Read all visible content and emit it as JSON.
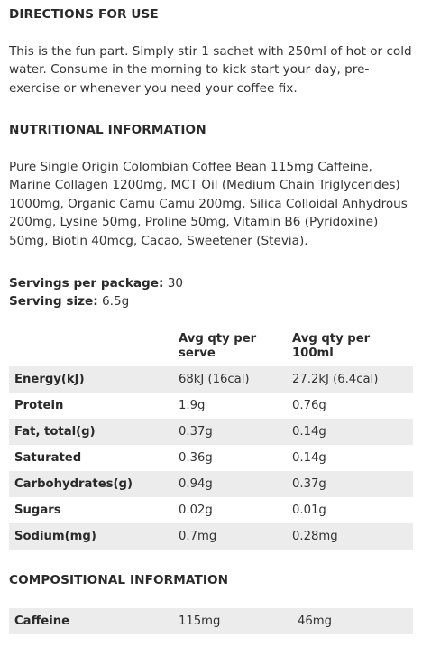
{
  "directions": {
    "heading": "DIRECTIONS FOR USE",
    "text": "This is the fun part. Simply stir 1 sachet with 250ml of hot or cold water. Consume in the morning to kick start your day, pre-exercise or whenever you need your coffee fix."
  },
  "nutrition": {
    "heading": "NUTRITIONAL INFORMATION",
    "ingredients": "Pure Single Origin Colombian Coffee Bean 115mg Caffeine, Marine Collagen 1200mg, MCT Oil (Medium Chain Triglycerides) 1000mg, Organic Camu Camu 200mg, Silica Colloidal Anhydrous 200mg, Lysine 50mg, Proline 50mg, Vitamin B6 (Pyridoxine) 50mg, Biotin 40mcg, Cacao, Sweetener (Stevia).",
    "servings_label": "Servings per package:",
    "servings_value": "30",
    "serving_size_label": "Serving size:",
    "serving_size_value": "6.5g",
    "table": {
      "headers": [
        "",
        "Avg qty per serve",
        "Avg qty per 100ml"
      ],
      "rows": [
        [
          "Energy(kJ)",
          "68kJ (16cal)",
          "27.2kJ (6.4cal)"
        ],
        [
          "Protein",
          "1.9g",
          "0.76g"
        ],
        [
          "Fat, total(g)",
          "0.37g",
          "0.14g"
        ],
        [
          "Saturated",
          "0.36g",
          "0.14g"
        ],
        [
          "Carbohydrates(g)",
          "0.94g",
          "0.37g"
        ],
        [
          "Sugars",
          "0.02g",
          "0.01g"
        ],
        [
          "Sodium(mg)",
          "0.7mg",
          "0.28mg"
        ]
      ]
    }
  },
  "composition": {
    "heading": "COMPOSITIONAL INFORMATION",
    "rows": [
      [
        "Caffeine",
        "115mg",
        "46mg"
      ]
    ]
  }
}
